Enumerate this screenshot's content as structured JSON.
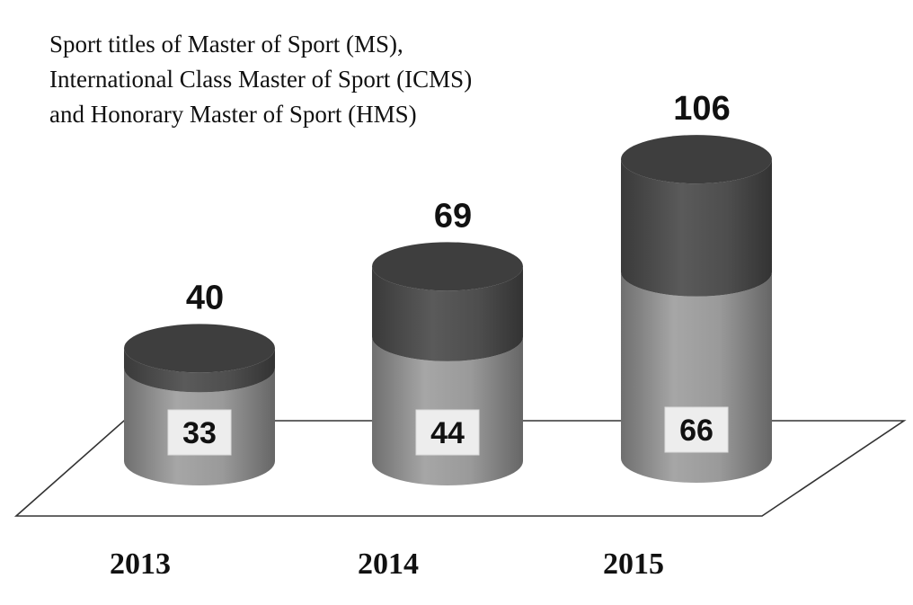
{
  "chart_data": {
    "type": "bar",
    "style": "stacked 3D cylinders",
    "title_lines": [
      "Sport titles of Master of Sport (MS),",
      "International Class Master of Sport (ICMS)",
      "and Honorary Master of Sport (HMS)"
    ],
    "categories": [
      "2013",
      "2014",
      "2015"
    ],
    "lower_values": [
      33,
      44,
      66
    ],
    "totals": [
      40,
      69,
      106
    ],
    "colors": {
      "lower_segment": "#8a8a8a",
      "upper_segment": "#4a4a4a",
      "floor_stroke": "#333333",
      "label_box": "#ededed"
    }
  }
}
